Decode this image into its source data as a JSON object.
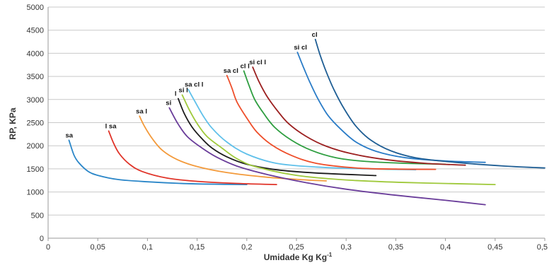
{
  "chart_data": {
    "type": "line",
    "title": "",
    "xlabel": "Umidade Kg Kg",
    "xlabel_superscript": "-1",
    "ylabel": "RP, KPa",
    "xlim": [
      0,
      0.5
    ],
    "ylim": [
      0,
      5000
    ],
    "x_ticks": [
      "0",
      "0,05",
      "0,1",
      "0,15",
      "0,2",
      "0,25",
      "0,3",
      "0,35",
      "0,4",
      "0,45",
      "0,5"
    ],
    "y_ticks": [
      "0",
      "500",
      "1000",
      "1500",
      "2000",
      "2500",
      "3000",
      "3500",
      "4000",
      "4500",
      "5000"
    ],
    "grid": "horizontal",
    "legend": "none",
    "series": [
      {
        "name": "sa",
        "color": "#2a86c8",
        "points": [
          [
            0.021,
            2120
          ],
          [
            0.026,
            1800
          ],
          [
            0.031,
            1630
          ],
          [
            0.04,
            1450
          ],
          [
            0.05,
            1360
          ],
          [
            0.07,
            1270
          ],
          [
            0.1,
            1220
          ],
          [
            0.14,
            1180
          ],
          [
            0.18,
            1165
          ],
          [
            0.2,
            1160
          ]
        ]
      },
      {
        "name": "l sa",
        "color": "#e03328",
        "points": [
          [
            0.061,
            2320
          ],
          [
            0.066,
            2050
          ],
          [
            0.072,
            1820
          ],
          [
            0.082,
            1600
          ],
          [
            0.095,
            1440
          ],
          [
            0.12,
            1300
          ],
          [
            0.15,
            1230
          ],
          [
            0.19,
            1185
          ],
          [
            0.23,
            1160
          ]
        ]
      },
      {
        "name": "sa l",
        "color": "#f39a3b",
        "points": [
          [
            0.092,
            2640
          ],
          [
            0.097,
            2420
          ],
          [
            0.105,
            2150
          ],
          [
            0.115,
            1900
          ],
          [
            0.13,
            1700
          ],
          [
            0.15,
            1550
          ],
          [
            0.18,
            1420
          ],
          [
            0.22,
            1320
          ],
          [
            0.26,
            1260
          ],
          [
            0.28,
            1240
          ]
        ]
      },
      {
        "name": "si",
        "color": "#6a3d9a",
        "points": [
          [
            0.122,
            2820
          ],
          [
            0.13,
            2500
          ],
          [
            0.14,
            2200
          ],
          [
            0.155,
            1950
          ],
          [
            0.17,
            1750
          ],
          [
            0.19,
            1560
          ],
          [
            0.22,
            1380
          ],
          [
            0.26,
            1200
          ],
          [
            0.3,
            1060
          ],
          [
            0.35,
            930
          ],
          [
            0.4,
            820
          ],
          [
            0.44,
            725
          ]
        ]
      },
      {
        "name": "l",
        "color": "#1c1c1c",
        "points": [
          [
            0.131,
            3020
          ],
          [
            0.137,
            2700
          ],
          [
            0.145,
            2400
          ],
          [
            0.155,
            2150
          ],
          [
            0.165,
            1950
          ],
          [
            0.18,
            1760
          ],
          [
            0.2,
            1600
          ],
          [
            0.23,
            1480
          ],
          [
            0.27,
            1410
          ],
          [
            0.33,
            1355
          ]
        ]
      },
      {
        "name": "si l",
        "color": "#9fc93b",
        "points": [
          [
            0.135,
            3100
          ],
          [
            0.142,
            2780
          ],
          [
            0.15,
            2480
          ],
          [
            0.16,
            2200
          ],
          [
            0.175,
            1950
          ],
          [
            0.19,
            1720
          ],
          [
            0.21,
            1540
          ],
          [
            0.25,
            1360
          ],
          [
            0.3,
            1260
          ],
          [
            0.36,
            1205
          ],
          [
            0.42,
            1175
          ],
          [
            0.45,
            1160
          ]
        ]
      },
      {
        "name": "sa cl l",
        "color": "#5fc0ea",
        "points": [
          [
            0.141,
            3220
          ],
          [
            0.148,
            2950
          ],
          [
            0.156,
            2650
          ],
          [
            0.165,
            2380
          ],
          [
            0.18,
            2080
          ],
          [
            0.2,
            1820
          ],
          [
            0.23,
            1620
          ],
          [
            0.27,
            1540
          ],
          [
            0.32,
            1500
          ],
          [
            0.37,
            1480
          ]
        ]
      },
      {
        "name": "sa cl",
        "color": "#ee4e2a",
        "points": [
          [
            0.18,
            3520
          ],
          [
            0.185,
            3250
          ],
          [
            0.19,
            2950
          ],
          [
            0.2,
            2600
          ],
          [
            0.21,
            2300
          ],
          [
            0.225,
            2020
          ],
          [
            0.245,
            1790
          ],
          [
            0.27,
            1620
          ],
          [
            0.31,
            1520
          ],
          [
            0.35,
            1495
          ],
          [
            0.39,
            1490
          ]
        ]
      },
      {
        "name": "cl l",
        "color": "#2e9e40",
        "points": [
          [
            0.197,
            3620
          ],
          [
            0.202,
            3320
          ],
          [
            0.208,
            3000
          ],
          [
            0.217,
            2700
          ],
          [
            0.228,
            2400
          ],
          [
            0.245,
            2120
          ],
          [
            0.265,
            1900
          ],
          [
            0.29,
            1740
          ],
          [
            0.32,
            1660
          ],
          [
            0.36,
            1620
          ],
          [
            0.4,
            1600
          ]
        ]
      },
      {
        "name": "si cl l",
        "color": "#9b1f1f",
        "points": [
          [
            0.206,
            3700
          ],
          [
            0.212,
            3400
          ],
          [
            0.22,
            3080
          ],
          [
            0.23,
            2780
          ],
          [
            0.242,
            2480
          ],
          [
            0.26,
            2200
          ],
          [
            0.28,
            1990
          ],
          [
            0.305,
            1830
          ],
          [
            0.34,
            1700
          ],
          [
            0.38,
            1620
          ],
          [
            0.42,
            1580
          ]
        ]
      },
      {
        "name": "si cl",
        "color": "#2a7cc7",
        "points": [
          [
            0.251,
            4020
          ],
          [
            0.257,
            3700
          ],
          [
            0.264,
            3350
          ],
          [
            0.272,
            3000
          ],
          [
            0.282,
            2650
          ],
          [
            0.295,
            2350
          ],
          [
            0.31,
            2080
          ],
          [
            0.33,
            1880
          ],
          [
            0.36,
            1740
          ],
          [
            0.4,
            1670
          ],
          [
            0.44,
            1640
          ]
        ]
      },
      {
        "name": "cl",
        "color": "#1f5e94",
        "points": [
          [
            0.269,
            4300
          ],
          [
            0.274,
            3950
          ],
          [
            0.28,
            3600
          ],
          [
            0.288,
            3200
          ],
          [
            0.298,
            2800
          ],
          [
            0.31,
            2420
          ],
          [
            0.325,
            2120
          ],
          [
            0.345,
            1890
          ],
          [
            0.37,
            1740
          ],
          [
            0.41,
            1640
          ],
          [
            0.46,
            1560
          ],
          [
            0.5,
            1520
          ]
        ]
      }
    ]
  }
}
